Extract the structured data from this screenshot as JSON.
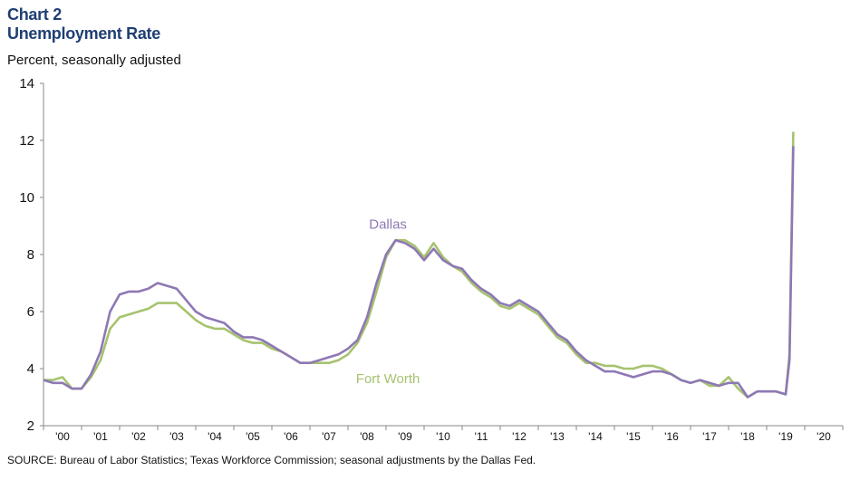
{
  "title_line1": "Chart 2",
  "title_line2": "Unemployment Rate",
  "subtitle": "Percent, seasonally adjusted",
  "source": "SOURCE: Bureau of Labor Statistics; Texas Workforce Commission; seasonal adjustments by the Dallas Fed.",
  "chart_data": {
    "type": "line",
    "ylim": [
      2,
      14
    ],
    "y_ticks": [
      2,
      4,
      6,
      8,
      10,
      12,
      14
    ],
    "x_tick_labels": [
      "'00",
      "'01",
      "'02",
      "'03",
      "'04",
      "'05",
      "'06",
      "'07",
      "'08",
      "'09",
      "'10",
      "'11",
      "'12",
      "'13",
      "'14",
      "'15",
      "'16",
      "'17",
      "'18",
      "'19",
      "'20"
    ],
    "x_start_year": 2000,
    "x_end_year": 2021,
    "grid": false,
    "series": [
      {
        "name": "Dallas",
        "color": "#8e78b4",
        "points": [
          [
            2000.0,
            3.6
          ],
          [
            2000.25,
            3.5
          ],
          [
            2000.5,
            3.5
          ],
          [
            2000.75,
            3.3
          ],
          [
            2001.0,
            3.3
          ],
          [
            2001.25,
            3.8
          ],
          [
            2001.5,
            4.6
          ],
          [
            2001.75,
            6.0
          ],
          [
            2002.0,
            6.6
          ],
          [
            2002.25,
            6.7
          ],
          [
            2002.5,
            6.7
          ],
          [
            2002.75,
            6.8
          ],
          [
            2003.0,
            7.0
          ],
          [
            2003.25,
            6.9
          ],
          [
            2003.5,
            6.8
          ],
          [
            2003.75,
            6.4
          ],
          [
            2004.0,
            6.0
          ],
          [
            2004.25,
            5.8
          ],
          [
            2004.5,
            5.7
          ],
          [
            2004.75,
            5.6
          ],
          [
            2005.0,
            5.3
          ],
          [
            2005.25,
            5.1
          ],
          [
            2005.5,
            5.1
          ],
          [
            2005.75,
            5.0
          ],
          [
            2006.0,
            4.8
          ],
          [
            2006.25,
            4.6
          ],
          [
            2006.5,
            4.4
          ],
          [
            2006.75,
            4.2
          ],
          [
            2007.0,
            4.2
          ],
          [
            2007.25,
            4.3
          ],
          [
            2007.5,
            4.4
          ],
          [
            2007.75,
            4.5
          ],
          [
            2008.0,
            4.7
          ],
          [
            2008.25,
            5.0
          ],
          [
            2008.5,
            5.8
          ],
          [
            2008.75,
            7.0
          ],
          [
            2009.0,
            8.0
          ],
          [
            2009.25,
            8.5
          ],
          [
            2009.5,
            8.4
          ],
          [
            2009.75,
            8.2
          ],
          [
            2010.0,
            7.8
          ],
          [
            2010.25,
            8.2
          ],
          [
            2010.5,
            7.8
          ],
          [
            2010.75,
            7.6
          ],
          [
            2011.0,
            7.5
          ],
          [
            2011.25,
            7.1
          ],
          [
            2011.5,
            6.8
          ],
          [
            2011.75,
            6.6
          ],
          [
            2012.0,
            6.3
          ],
          [
            2012.25,
            6.2
          ],
          [
            2012.5,
            6.4
          ],
          [
            2012.75,
            6.2
          ],
          [
            2013.0,
            6.0
          ],
          [
            2013.25,
            5.6
          ],
          [
            2013.5,
            5.2
          ],
          [
            2013.75,
            5.0
          ],
          [
            2014.0,
            4.6
          ],
          [
            2014.25,
            4.3
          ],
          [
            2014.5,
            4.1
          ],
          [
            2014.75,
            3.9
          ],
          [
            2015.0,
            3.9
          ],
          [
            2015.25,
            3.8
          ],
          [
            2015.5,
            3.7
          ],
          [
            2015.75,
            3.8
          ],
          [
            2016.0,
            3.9
          ],
          [
            2016.25,
            3.9
          ],
          [
            2016.5,
            3.8
          ],
          [
            2016.75,
            3.6
          ],
          [
            2017.0,
            3.5
          ],
          [
            2017.25,
            3.6
          ],
          [
            2017.5,
            3.5
          ],
          [
            2017.75,
            3.4
          ],
          [
            2018.0,
            3.5
          ],
          [
            2018.25,
            3.5
          ],
          [
            2018.5,
            3.0
          ],
          [
            2018.75,
            3.2
          ],
          [
            2019.0,
            3.2
          ],
          [
            2019.25,
            3.2
          ],
          [
            2019.5,
            3.1
          ],
          [
            2019.6,
            4.3
          ],
          [
            2019.7,
            11.8
          ]
        ]
      },
      {
        "name": "Fort Worth",
        "color": "#a6c36f",
        "points": [
          [
            2000.0,
            3.6
          ],
          [
            2000.25,
            3.6
          ],
          [
            2000.5,
            3.7
          ],
          [
            2000.75,
            3.3
          ],
          [
            2001.0,
            3.3
          ],
          [
            2001.25,
            3.7
          ],
          [
            2001.5,
            4.3
          ],
          [
            2001.75,
            5.4
          ],
          [
            2002.0,
            5.8
          ],
          [
            2002.25,
            5.9
          ],
          [
            2002.5,
            6.0
          ],
          [
            2002.75,
            6.1
          ],
          [
            2003.0,
            6.3
          ],
          [
            2003.25,
            6.3
          ],
          [
            2003.5,
            6.3
          ],
          [
            2003.75,
            6.0
          ],
          [
            2004.0,
            5.7
          ],
          [
            2004.25,
            5.5
          ],
          [
            2004.5,
            5.4
          ],
          [
            2004.75,
            5.4
          ],
          [
            2005.0,
            5.2
          ],
          [
            2005.25,
            5.0
          ],
          [
            2005.5,
            4.9
          ],
          [
            2005.75,
            4.9
          ],
          [
            2006.0,
            4.7
          ],
          [
            2006.25,
            4.6
          ],
          [
            2006.5,
            4.4
          ],
          [
            2006.75,
            4.2
          ],
          [
            2007.0,
            4.2
          ],
          [
            2007.25,
            4.2
          ],
          [
            2007.5,
            4.2
          ],
          [
            2007.75,
            4.3
          ],
          [
            2008.0,
            4.5
          ],
          [
            2008.25,
            4.9
          ],
          [
            2008.5,
            5.6
          ],
          [
            2008.75,
            6.7
          ],
          [
            2009.0,
            7.9
          ],
          [
            2009.25,
            8.5
          ],
          [
            2009.5,
            8.5
          ],
          [
            2009.75,
            8.3
          ],
          [
            2010.0,
            7.9
          ],
          [
            2010.25,
            8.4
          ],
          [
            2010.5,
            7.9
          ],
          [
            2010.75,
            7.6
          ],
          [
            2011.0,
            7.4
          ],
          [
            2011.25,
            7.0
          ],
          [
            2011.5,
            6.7
          ],
          [
            2011.75,
            6.5
          ],
          [
            2012.0,
            6.2
          ],
          [
            2012.25,
            6.1
          ],
          [
            2012.5,
            6.3
          ],
          [
            2012.75,
            6.1
          ],
          [
            2013.0,
            5.9
          ],
          [
            2013.25,
            5.5
          ],
          [
            2013.5,
            5.1
          ],
          [
            2013.75,
            4.9
          ],
          [
            2014.0,
            4.5
          ],
          [
            2014.25,
            4.2
          ],
          [
            2014.5,
            4.2
          ],
          [
            2014.75,
            4.1
          ],
          [
            2015.0,
            4.1
          ],
          [
            2015.25,
            4.0
          ],
          [
            2015.5,
            4.0
          ],
          [
            2015.75,
            4.1
          ],
          [
            2016.0,
            4.1
          ],
          [
            2016.25,
            4.0
          ],
          [
            2016.5,
            3.8
          ],
          [
            2016.75,
            3.6
          ],
          [
            2017.0,
            3.5
          ],
          [
            2017.25,
            3.6
          ],
          [
            2017.5,
            3.4
          ],
          [
            2017.75,
            3.4
          ],
          [
            2018.0,
            3.7
          ],
          [
            2018.25,
            3.3
          ],
          [
            2018.5,
            3.0
          ],
          [
            2018.75,
            3.2
          ],
          [
            2019.0,
            3.2
          ],
          [
            2019.25,
            3.2
          ],
          [
            2019.5,
            3.1
          ],
          [
            2019.6,
            4.5
          ],
          [
            2019.7,
            12.3
          ]
        ]
      }
    ]
  }
}
